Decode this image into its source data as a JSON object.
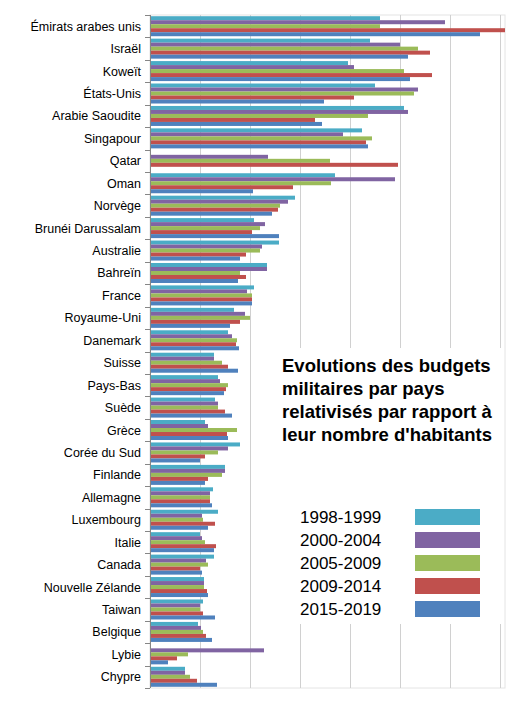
{
  "chart_data": {
    "type": "bar",
    "orientation": "horizontal",
    "title": "Evolutions des budgets militaires par pays relativisés par rapport à leur nombre d'habitants",
    "categories": [
      "Émirats arabes unis",
      "Israël",
      "Koweït",
      "États-Unis",
      "Arabie Saoudite",
      "Singapour",
      "Qatar",
      "Oman",
      "Norvège",
      "Brunéi Darussalam",
      "Australie",
      "Bahreïn",
      "France",
      "Royaume-Uni",
      "Danemark",
      "Suisse",
      "Pays-Bas",
      "Suède",
      "Grèce",
      "Corée du Sud",
      "Finlande",
      "Allemagne",
      "Luxembourg",
      "Italie",
      "Canada",
      "Nouvelle Zélande",
      "Taiwan",
      "Belgique",
      "Lybie",
      "Chypre"
    ],
    "series": [
      {
        "name": "1998-1999",
        "color": "#4bacc6",
        "values": [
          4.6,
          4.4,
          3.96,
          4.5,
          5.08,
          4.24,
          null,
          3.7,
          2.9,
          2.08,
          2.58,
          2.34,
          2.08,
          1.68,
          1.56,
          1.28,
          1.36,
          1.3,
          1.1,
          1.8,
          1.5,
          1.26,
          1.36,
          1.0,
          1.28,
          1.08,
          1.06,
          0.96,
          null,
          0.7
        ]
      },
      {
        "name": "2000-2004",
        "color": "#8064a2",
        "values": [
          5.9,
          5.0,
          4.08,
          5.36,
          5.16,
          3.86,
          2.36,
          4.9,
          2.76,
          2.3,
          2.24,
          2.34,
          1.94,
          1.9,
          1.64,
          1.28,
          1.4,
          1.36,
          1.16,
          1.56,
          1.5,
          1.2,
          1.04,
          1.04,
          1.12,
          1.08,
          1.0,
          1.02,
          2.28,
          0.7
        ]
      },
      {
        "name": "2005-2009",
        "color": "#9bbb59",
        "values": [
          4.6,
          5.36,
          5.08,
          5.28,
          4.36,
          4.44,
          3.6,
          3.62,
          2.6,
          2.2,
          2.2,
          1.8,
          2.04,
          2.0,
          1.74,
          1.44,
          1.56,
          1.36,
          1.74,
          1.36,
          1.44,
          1.2,
          1.06,
          1.1,
          1.16,
          1.08,
          1.0,
          1.06,
          0.76,
          0.8
        ]
      },
      {
        "name": "2009-2014",
        "color": "#c0504d",
        "values": [
          7.1,
          5.6,
          5.64,
          4.08,
          3.3,
          4.32,
          4.96,
          2.86,
          2.56,
          2.04,
          1.92,
          1.92,
          2.04,
          1.8,
          1.72,
          1.56,
          1.52,
          1.5,
          1.54,
          1.1,
          1.16,
          1.2,
          1.3,
          1.32,
          1.0,
          1.14,
          1.06,
          1.12,
          0.54,
          0.94
        ]
      },
      {
        "name": "2015-2019",
        "color": "#4f81bd",
        "values": [
          6.6,
          5.16,
          5.2,
          3.48,
          3.44,
          4.36,
          null,
          2.06,
          2.44,
          2.58,
          1.8,
          1.76,
          2.04,
          1.6,
          1.78,
          1.76,
          1.48,
          1.64,
          1.56,
          1.0,
          1.1,
          1.24,
          1.16,
          1.28,
          1.04,
          1.16,
          1.3,
          1.24,
          0.36,
          1.34
        ]
      }
    ],
    "xlim": [
      0,
      7.1
    ],
    "xticks": [
      0,
      1,
      2,
      3,
      4,
      5,
      6,
      7
    ],
    "grid": true,
    "tick_labels": false,
    "legend": "lower right"
  }
}
